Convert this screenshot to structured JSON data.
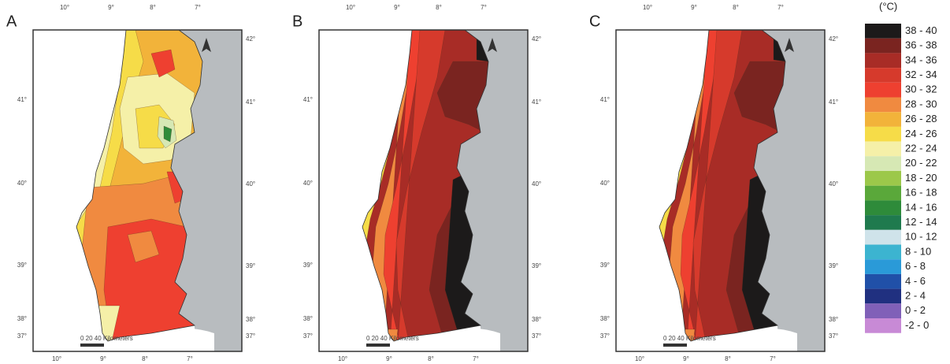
{
  "panels": [
    {
      "label": "A",
      "top_ticks": [
        "10°",
        "9°",
        "8°",
        "7°"
      ],
      "bottom_ticks": [
        "10°",
        "9°",
        "8°",
        "7°"
      ],
      "left_ticks": [
        "41°",
        "40°",
        "39°",
        "38°",
        "37°"
      ],
      "right_ticks": [
        "42°",
        "41°",
        "40°",
        "39°",
        "38°",
        "37°"
      ],
      "scale": "0 20 40 Kilometers"
    },
    {
      "label": "B",
      "top_ticks": [
        "10°",
        "9°",
        "8°",
        "7°"
      ],
      "bottom_ticks": [
        "10°",
        "9°",
        "8°",
        "7°"
      ],
      "left_ticks": [
        "41°",
        "40°",
        "39°",
        "38°",
        "37°"
      ],
      "right_ticks": [
        "42°",
        "41°",
        "40°",
        "39°",
        "38°",
        "37°"
      ],
      "scale": "0 20 40 Kilometers"
    },
    {
      "label": "C",
      "top_ticks": [
        "10°",
        "9°",
        "8°",
        "7°"
      ],
      "bottom_ticks": [
        "10°",
        "9°",
        "8°",
        "7°"
      ],
      "left_ticks": [
        "41°",
        "40°",
        "39°",
        "38°",
        "37°"
      ],
      "right_ticks": [
        "42°",
        "41°",
        "40°",
        "39°",
        "38°",
        "37°"
      ],
      "scale": "0 20 40 Kilometers"
    }
  ],
  "legend": {
    "unit": "(°C)",
    "items": [
      {
        "label": "38 - 40",
        "color": "#1c1a1a"
      },
      {
        "label": "36 - 38",
        "color": "#7a2420"
      },
      {
        "label": "34 - 36",
        "color": "#a82c26"
      },
      {
        "label": "32 - 34",
        "color": "#d63a2c"
      },
      {
        "label": "30 - 32",
        "color": "#ee4030"
      },
      {
        "label": "28 - 30",
        "color": "#f08a40"
      },
      {
        "label": "26 - 28",
        "color": "#f2b33a"
      },
      {
        "label": "24 - 26",
        "color": "#f6dc48"
      },
      {
        "label": "22 - 24",
        "color": "#f5f0a8"
      },
      {
        "label": "20 - 22",
        "color": "#d6e8b4"
      },
      {
        "label": "18 - 20",
        "color": "#9cc84a"
      },
      {
        "label": "16 - 18",
        "color": "#5aa83a"
      },
      {
        "label": "14 - 16",
        "color": "#2e8b3a"
      },
      {
        "label": "12 - 14",
        "color": "#1f7a4e"
      },
      {
        "label": "10 - 12",
        "color": "#cfe3ea"
      },
      {
        "label": "8 - 10",
        "color": "#3cb4d0"
      },
      {
        "label": "6 - 8",
        "color": "#2a9ad8"
      },
      {
        "label": "4 - 6",
        "color": "#2050a8"
      },
      {
        "label": "2 - 4",
        "color": "#203080"
      },
      {
        "label": "0 - 2",
        "color": "#8060b8"
      },
      {
        "label": "-2 - 0",
        "color": "#c88ad6"
      }
    ]
  }
}
